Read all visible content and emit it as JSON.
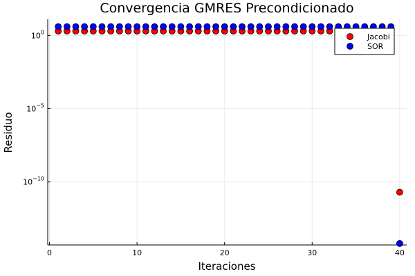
{
  "chart_data": {
    "type": "scatter",
    "title": "Convergencia GMRES Precondicionado",
    "xlabel": "Iteraciones",
    "ylabel": "Residuo",
    "xlim": [
      -0.2,
      40.8
    ],
    "ylim": [
      -14.3,
      1.1
    ],
    "y_scale": "log10",
    "grid": true,
    "legend_position": "top-right",
    "x_ticks": [
      {
        "value": 0,
        "label": "0"
      },
      {
        "value": 10,
        "label": "10"
      },
      {
        "value": 20,
        "label": "20"
      },
      {
        "value": 30,
        "label": "30"
      },
      {
        "value": 40,
        "label": "40"
      }
    ],
    "y_ticks": [
      {
        "exp": 0,
        "base": "10",
        "power": "0"
      },
      {
        "exp": -5,
        "base": "10",
        "power": "−5"
      },
      {
        "exp": -10,
        "base": "10",
        "power": "−10"
      }
    ],
    "series": [
      {
        "name": "Jacobi",
        "color": "#ff0000",
        "x": [
          1,
          2,
          3,
          4,
          5,
          6,
          7,
          8,
          9,
          10,
          11,
          12,
          13,
          14,
          15,
          16,
          17,
          18,
          19,
          20,
          21,
          22,
          23,
          24,
          25,
          26,
          27,
          28,
          29,
          30,
          31,
          32,
          33,
          34,
          35,
          36,
          37,
          38,
          39,
          40
        ],
        "log10_y": [
          0.3,
          0.3,
          0.3,
          0.3,
          0.3,
          0.3,
          0.3,
          0.3,
          0.3,
          0.3,
          0.3,
          0.3,
          0.3,
          0.3,
          0.3,
          0.3,
          0.3,
          0.3,
          0.3,
          0.3,
          0.3,
          0.3,
          0.3,
          0.3,
          0.3,
          0.3,
          0.3,
          0.3,
          0.3,
          0.3,
          0.3,
          0.3,
          0.3,
          0.3,
          0.3,
          0.3,
          0.3,
          0.3,
          0.3,
          -10.7
        ]
      },
      {
        "name": "SOR",
        "color": "#0000ff",
        "x": [
          1,
          2,
          3,
          4,
          5,
          6,
          7,
          8,
          9,
          10,
          11,
          12,
          13,
          14,
          15,
          16,
          17,
          18,
          19,
          20,
          21,
          22,
          23,
          24,
          25,
          26,
          27,
          28,
          29,
          30,
          31,
          32,
          33,
          34,
          35,
          36,
          37,
          38,
          39,
          40
        ],
        "log10_y": [
          0.6,
          0.6,
          0.6,
          0.6,
          0.6,
          0.6,
          0.6,
          0.6,
          0.6,
          0.6,
          0.6,
          0.6,
          0.6,
          0.6,
          0.6,
          0.6,
          0.6,
          0.6,
          0.6,
          0.6,
          0.6,
          0.6,
          0.6,
          0.6,
          0.6,
          0.6,
          0.6,
          0.6,
          0.6,
          0.6,
          0.6,
          0.6,
          0.6,
          0.6,
          0.6,
          0.6,
          0.6,
          0.6,
          0.6,
          -14.2
        ]
      }
    ]
  }
}
